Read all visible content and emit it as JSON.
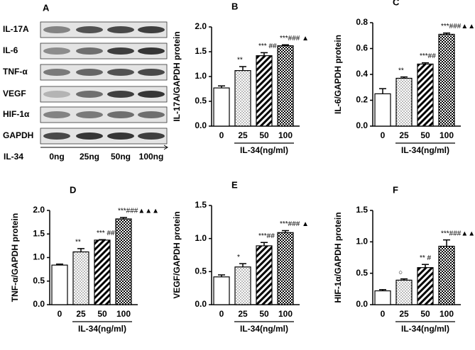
{
  "blot": {
    "panel": "A",
    "rows": [
      "IL-17A",
      "IL-6",
      "TNF-α",
      "VEGF",
      "HIF-1α",
      "GAPDH"
    ],
    "treatment": "IL-34",
    "lanes": [
      "0ng",
      "25ng",
      "50ng",
      "100ng"
    ]
  },
  "chart_data": [
    {
      "type": "bar",
      "panel": "B",
      "y_label": "IL-17A/GAPDH protein",
      "x_label": "IL-34(ng/ml)",
      "categories": [
        "0",
        "25",
        "50",
        "100"
      ],
      "values": [
        0.77,
        1.12,
        1.42,
        1.62
      ],
      "errors": [
        0.04,
        0.08,
        0.06,
        0.02
      ],
      "annotations": [
        null,
        "**",
        "*** ##",
        "***### ▲"
      ],
      "ylim": [
        0,
        2.0
      ],
      "yticks": [
        {
          "value": 0,
          "label": "0.0"
        },
        {
          "value": 0.5,
          "label": "0.5"
        },
        {
          "value": 1.0,
          "label": "1.0"
        },
        {
          "value": 1.5,
          "label": "1.5"
        },
        {
          "value": 2.0,
          "label": "2.0"
        }
      ]
    },
    {
      "type": "bar",
      "panel": "C",
      "y_label": "IL-6/GAPDH protein",
      "x_label": "IL-34(ng/ml)",
      "categories": [
        "0",
        "25",
        "50",
        "100"
      ],
      "values": [
        0.25,
        0.37,
        0.48,
        0.71
      ],
      "errors": [
        0.04,
        0.01,
        0.01,
        0.01
      ],
      "annotations": [
        null,
        "**",
        "***##",
        "***###▲▲▲"
      ],
      "ylim": [
        0,
        0.8
      ],
      "yticks": [
        {
          "value": 0,
          "label": "0.0"
        },
        0.2,
        0.4,
        0.6,
        0.8
      ]
    },
    {
      "type": "bar",
      "panel": "D",
      "y_label": "TNF-α/GAPDH protein",
      "x_label": "IL-34(ng/ml)",
      "categories": [
        "0",
        "25",
        "50",
        "100"
      ],
      "values": [
        0.84,
        1.12,
        1.37,
        1.82
      ],
      "errors": [
        0.02,
        0.07,
        0.01,
        0.03
      ],
      "annotations": [
        null,
        "**",
        "*** ##",
        "***###▲▲▲"
      ],
      "ylim": [
        0,
        2.0
      ],
      "yticks": [
        {
          "value": 0,
          "label": "0.0"
        },
        {
          "value": 0.5,
          "label": "0.5"
        },
        {
          "value": 1.0,
          "label": "1.0"
        },
        {
          "value": 1.5,
          "label": "1.5"
        },
        {
          "value": 2.0,
          "label": "2.0"
        }
      ]
    },
    {
      "type": "bar",
      "panel": "E",
      "y_label": "VEGF/GAPDH protein",
      "x_label": "IL-34(ng/ml)",
      "categories": [
        "0",
        "25",
        "50",
        "100"
      ],
      "values": [
        0.42,
        0.57,
        0.89,
        1.09
      ],
      "errors": [
        0.03,
        0.05,
        0.05,
        0.03
      ],
      "annotations": [
        null,
        "*",
        "***##",
        "***### ▲"
      ],
      "ylim": [
        0,
        1.5
      ],
      "yticks": [
        {
          "value": 0,
          "label": "0.0"
        },
        0.5,
        {
          "value": 1.0,
          "label": "1.0"
        },
        1.5
      ]
    },
    {
      "type": "bar",
      "panel": "F",
      "y_label": "HIF-1α/GAPDH protein",
      "x_label": "IL-34(ng/ml)",
      "categories": [
        "0",
        "25",
        "50",
        "100"
      ],
      "values": [
        0.22,
        0.39,
        0.59,
        0.93
      ],
      "errors": [
        0.02,
        0.02,
        0.05,
        0.1
      ],
      "annotations": [
        null,
        "○",
        "** #",
        "***###▲▲"
      ],
      "ylim": [
        0,
        1.5
      ],
      "yticks": [
        {
          "value": 0,
          "label": "0.0"
        },
        0.5,
        {
          "value": 1.0,
          "label": "1.0"
        },
        1.5
      ]
    }
  ]
}
